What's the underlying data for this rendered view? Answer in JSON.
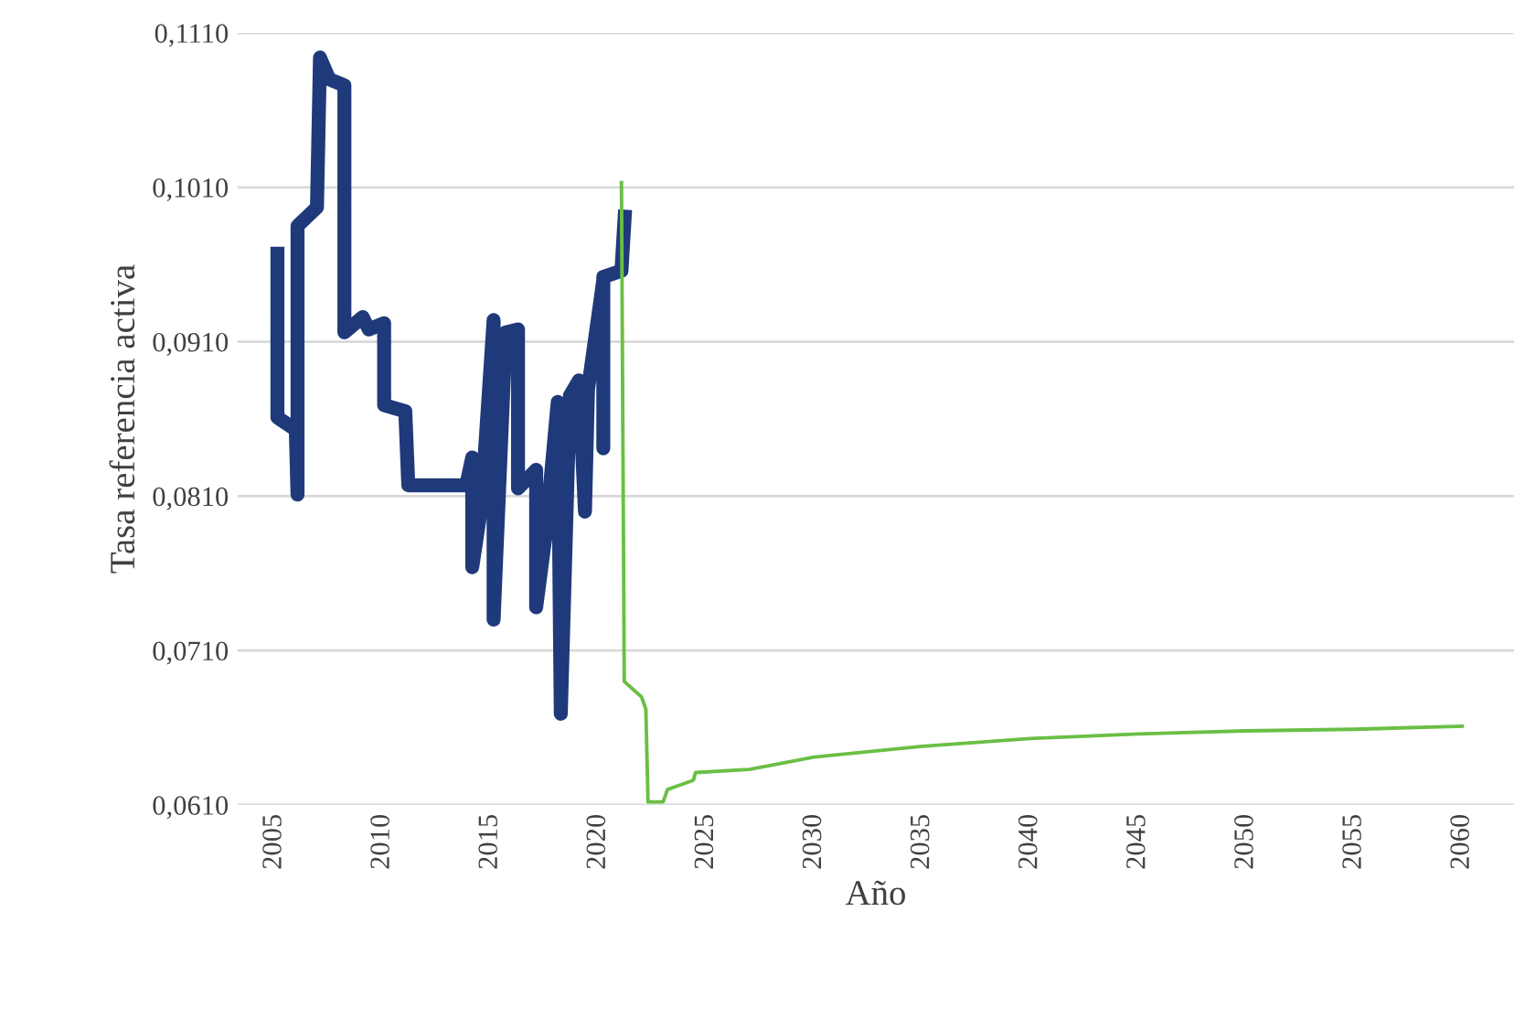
{
  "chart_data": {
    "type": "line",
    "xlabel": "Año",
    "ylabel": "Tasa referencia activa",
    "xlim": [
      2003.3,
      2062.4
    ],
    "xticks": [
      2005,
      2010,
      2015,
      2020,
      2025,
      2030,
      2035,
      2040,
      2045,
      2050,
      2055,
      2060
    ],
    "ylim": [
      0.061,
      0.111
    ],
    "yticks": [
      {
        "value": 0.061,
        "label": "0,0610"
      },
      {
        "value": 0.071,
        "label": "0,0710"
      },
      {
        "value": 0.081,
        "label": "0,0810"
      },
      {
        "value": 0.091,
        "label": "0,0910"
      },
      {
        "value": 0.101,
        "label": "0,1010"
      },
      {
        "value": 0.111,
        "label": "0,1110"
      }
    ],
    "grid": "y",
    "legend": false,
    "marker": "none",
    "line_style": "solid",
    "series": [
      {
        "color": "#1f3a7a",
        "x": [
          2005.14,
          2005.14,
          2005.99,
          2006.07,
          2006.07,
          2006.97,
          2007.11,
          2007.54,
          2008.24,
          2008.24,
          2009.09,
          2009.37,
          2010.08,
          2010.08,
          2011.06,
          2011.2,
          2013.88,
          2014.16,
          2014.16,
          2014.58,
          2015.15,
          2015.15,
          2015.71,
          2016.28,
          2016.28,
          2017.12,
          2017.12,
          2017.55,
          2018.12,
          2018.26,
          2018.68,
          2019.1,
          2019.38,
          2019.52,
          2020.23,
          2020.23,
          2020.23,
          2021.07,
          2021.22
        ],
        "values": [
          0.0967,
          0.0861,
          0.0853,
          0.0811,
          0.0985,
          0.0997,
          0.1094,
          0.108,
          0.1076,
          0.0916,
          0.0926,
          0.0918,
          0.0922,
          0.0869,
          0.0865,
          0.0817,
          0.0817,
          0.0835,
          0.0764,
          0.0803,
          0.0924,
          0.073,
          0.0916,
          0.0918,
          0.0815,
          0.0827,
          0.0738,
          0.0784,
          0.0871,
          0.0669,
          0.0875,
          0.0885,
          0.08,
          0.0879,
          0.095,
          0.0841,
          0.0952,
          0.0956,
          0.0991
        ]
      },
      {
        "color": "#6abf45",
        "x": [
          2021.07,
          2021.2,
          2022.0,
          2022.2,
          2022.3,
          2023.0,
          2023.2,
          2023.6,
          2024.4,
          2024.5,
          2027,
          2030,
          2035,
          2040,
          2045,
          2050,
          2055,
          2060
        ],
        "values": [
          0.1013,
          0.069,
          0.068,
          0.0672,
          0.0612,
          0.0612,
          0.062,
          0.0622,
          0.0626,
          0.0631,
          0.0633,
          0.0641,
          0.0648,
          0.0653,
          0.0656,
          0.0658,
          0.0659,
          0.0661
        ]
      }
    ]
  }
}
